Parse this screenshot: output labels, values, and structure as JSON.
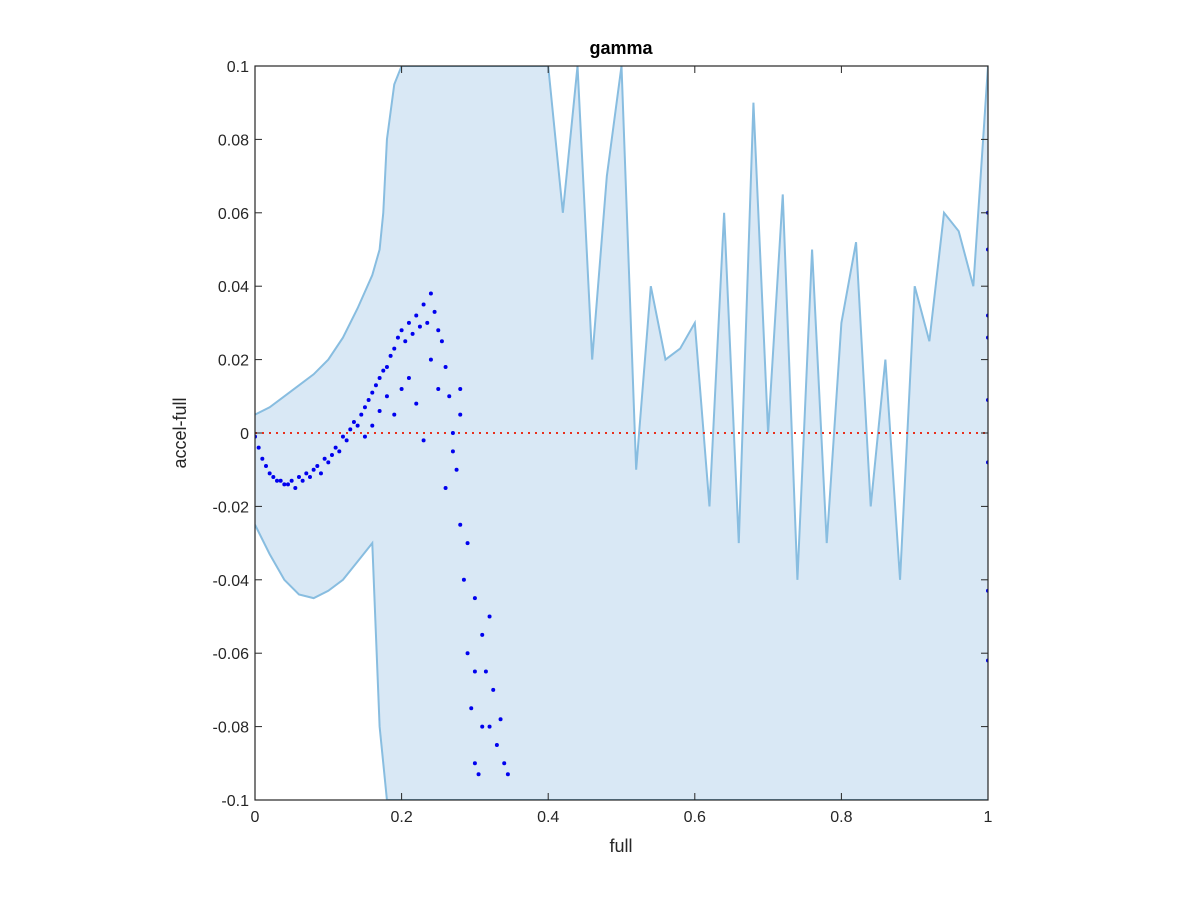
{
  "chart_data": {
    "type": "scatter",
    "title": "gamma",
    "xlabel": "full",
    "ylabel": "accel-full",
    "xlim": [
      0,
      1
    ],
    "ylim": [
      -0.1,
      0.1
    ],
    "x_ticks": [
      "0",
      "0.2",
      "0.4",
      "0.6",
      "0.8",
      "1"
    ],
    "y_ticks": [
      "-0.1",
      "-0.08",
      "-0.06",
      "-0.04",
      "-0.02",
      "0",
      "0.02",
      "0.04",
      "0.06",
      "0.08",
      "0.1"
    ],
    "grid": false,
    "reference_line": {
      "y": 0,
      "style": "dotted",
      "color": "#e8301c"
    },
    "band": {
      "fill_color": "#d9e8f5",
      "line_color": "#88bde0",
      "upper": [
        [
          0.0,
          0.005
        ],
        [
          0.02,
          0.007
        ],
        [
          0.04,
          0.01
        ],
        [
          0.06,
          0.013
        ],
        [
          0.08,
          0.016
        ],
        [
          0.1,
          0.02
        ],
        [
          0.12,
          0.026
        ],
        [
          0.14,
          0.034
        ],
        [
          0.16,
          0.043
        ],
        [
          0.17,
          0.05
        ],
        [
          0.175,
          0.06
        ],
        [
          0.18,
          0.08
        ],
        [
          0.19,
          0.095
        ],
        [
          0.2,
          0.1
        ],
        [
          0.4,
          0.1
        ],
        [
          0.41,
          0.08
        ],
        [
          0.42,
          0.06
        ],
        [
          0.44,
          0.1
        ],
        [
          0.46,
          0.02
        ],
        [
          0.48,
          0.07
        ],
        [
          0.5,
          0.1
        ],
        [
          0.52,
          -0.01
        ],
        [
          0.54,
          0.04
        ],
        [
          0.56,
          0.02
        ],
        [
          0.58,
          0.023
        ],
        [
          0.6,
          0.03
        ],
        [
          0.62,
          -0.02
        ],
        [
          0.64,
          0.06
        ],
        [
          0.66,
          -0.03
        ],
        [
          0.68,
          0.09
        ],
        [
          0.7,
          0.0
        ],
        [
          0.72,
          0.065
        ],
        [
          0.74,
          -0.04
        ],
        [
          0.76,
          0.05
        ],
        [
          0.78,
          -0.03
        ],
        [
          0.8,
          0.03
        ],
        [
          0.82,
          0.052
        ],
        [
          0.84,
          -0.02
        ],
        [
          0.86,
          0.02
        ],
        [
          0.88,
          -0.04
        ],
        [
          0.9,
          0.04
        ],
        [
          0.92,
          0.025
        ],
        [
          0.94,
          0.06
        ],
        [
          0.96,
          0.055
        ],
        [
          0.98,
          0.04
        ],
        [
          1.0,
          0.1
        ]
      ],
      "lower": [
        [
          0.0,
          -0.025
        ],
        [
          0.02,
          -0.033
        ],
        [
          0.04,
          -0.04
        ],
        [
          0.06,
          -0.044
        ],
        [
          0.08,
          -0.045
        ],
        [
          0.1,
          -0.043
        ],
        [
          0.12,
          -0.04
        ],
        [
          0.14,
          -0.035
        ],
        [
          0.16,
          -0.03
        ],
        [
          0.17,
          -0.08
        ],
        [
          0.18,
          -0.1
        ],
        [
          0.25,
          -0.1
        ],
        [
          1.0,
          -0.1
        ]
      ]
    },
    "series": [
      {
        "color": "#0000ee",
        "marker": "dot",
        "points": [
          [
            0.0,
            -0.001
          ],
          [
            0.005,
            -0.004
          ],
          [
            0.01,
            -0.007
          ],
          [
            0.015,
            -0.009
          ],
          [
            0.02,
            -0.011
          ],
          [
            0.025,
            -0.012
          ],
          [
            0.03,
            -0.013
          ],
          [
            0.035,
            -0.013
          ],
          [
            0.04,
            -0.014
          ],
          [
            0.045,
            -0.014
          ],
          [
            0.05,
            -0.013
          ],
          [
            0.055,
            -0.015
          ],
          [
            0.06,
            -0.012
          ],
          [
            0.065,
            -0.013
          ],
          [
            0.07,
            -0.011
          ],
          [
            0.075,
            -0.012
          ],
          [
            0.08,
            -0.01
          ],
          [
            0.085,
            -0.009
          ],
          [
            0.09,
            -0.011
          ],
          [
            0.095,
            -0.007
          ],
          [
            0.1,
            -0.008
          ],
          [
            0.105,
            -0.006
          ],
          [
            0.11,
            -0.004
          ],
          [
            0.115,
            -0.005
          ],
          [
            0.12,
            -0.001
          ],
          [
            0.125,
            -0.002
          ],
          [
            0.13,
            0.001
          ],
          [
            0.135,
            0.003
          ],
          [
            0.14,
            0.002
          ],
          [
            0.145,
            0.005
          ],
          [
            0.15,
            0.007
          ],
          [
            0.155,
            0.009
          ],
          [
            0.16,
            0.011
          ],
          [
            0.165,
            0.013
          ],
          [
            0.17,
            0.015
          ],
          [
            0.175,
            0.017
          ],
          [
            0.18,
            0.018
          ],
          [
            0.185,
            0.021
          ],
          [
            0.19,
            0.023
          ],
          [
            0.195,
            0.026
          ],
          [
            0.2,
            0.028
          ],
          [
            0.205,
            0.025
          ],
          [
            0.21,
            0.03
          ],
          [
            0.215,
            0.027
          ],
          [
            0.22,
            0.032
          ],
          [
            0.225,
            0.029
          ],
          [
            0.23,
            0.035
          ],
          [
            0.235,
            0.03
          ],
          [
            0.24,
            0.038
          ],
          [
            0.245,
            0.033
          ],
          [
            0.25,
            0.028
          ],
          [
            0.255,
            0.025
          ],
          [
            0.26,
            0.018
          ],
          [
            0.265,
            0.01
          ],
          [
            0.27,
            0.0
          ],
          [
            0.275,
            -0.01
          ],
          [
            0.28,
            -0.025
          ],
          [
            0.285,
            -0.04
          ],
          [
            0.29,
            -0.06
          ],
          [
            0.295,
            -0.075
          ],
          [
            0.3,
            -0.09
          ],
          [
            0.305,
            -0.093
          ],
          [
            0.31,
            -0.08
          ],
          [
            0.315,
            -0.065
          ],
          [
            0.32,
            -0.05
          ],
          [
            0.325,
            -0.07
          ],
          [
            0.33,
            -0.085
          ],
          [
            0.335,
            -0.078
          ],
          [
            0.34,
            -0.09
          ],
          [
            0.345,
            -0.093
          ],
          [
            0.21,
            0.015
          ],
          [
            0.22,
            0.008
          ],
          [
            0.23,
            -0.002
          ],
          [
            0.24,
            0.02
          ],
          [
            0.25,
            0.012
          ],
          [
            0.26,
            -0.015
          ],
          [
            0.27,
            -0.005
          ],
          [
            0.28,
            0.005
          ],
          [
            0.29,
            -0.03
          ],
          [
            0.3,
            -0.045
          ],
          [
            0.19,
            0.005
          ],
          [
            0.2,
            0.012
          ],
          [
            0.15,
            -0.001
          ],
          [
            0.16,
            0.002
          ],
          [
            0.17,
            0.006
          ],
          [
            0.18,
            0.01
          ],
          [
            0.31,
            -0.055
          ],
          [
            0.32,
            -0.08
          ],
          [
            0.3,
            -0.065
          ],
          [
            0.28,
            0.012
          ],
          [
            1.0,
            0.06
          ],
          [
            1.0,
            0.05
          ],
          [
            1.0,
            0.032
          ],
          [
            1.0,
            0.026
          ],
          [
            1.0,
            0.009
          ],
          [
            1.0,
            -0.008
          ],
          [
            1.0,
            -0.043
          ],
          [
            1.0,
            -0.062
          ]
        ]
      }
    ]
  }
}
